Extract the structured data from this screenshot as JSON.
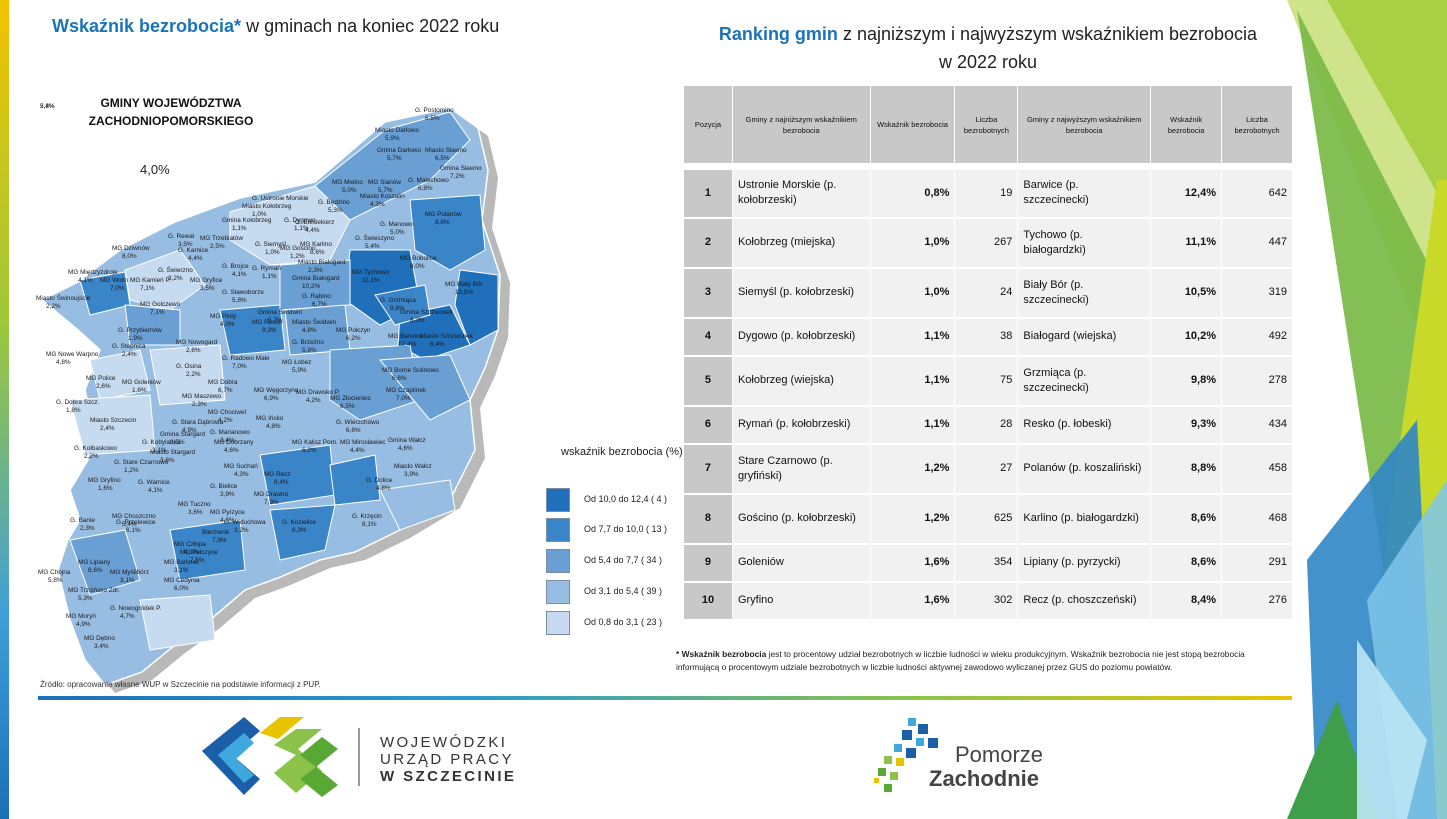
{
  "map": {
    "title_highlight": "Wskaźnik bezrobocia*",
    "title_rest": " w gminach na koniec 2022 roku",
    "region_title_line1": "GMINY WOJEWÓDZTWA",
    "region_title_line2": "ZACHODNIOPOMORSKIEGO",
    "region_value": "4,0%",
    "labels": [
      {
        "name": "G. Postomino",
        "value": "6,5%",
        "cls": 3
      },
      {
        "name": "Miasto Darłowo",
        "value": "5,9%",
        "cls": 3
      },
      {
        "name": "Gmina Darłowo",
        "value": "5,7%",
        "cls": 3
      },
      {
        "name": "Miasto Sławno",
        "value": "6,5%",
        "cls": 3
      },
      {
        "name": "Gmina Sławno",
        "value": "7,2%",
        "cls": 3
      },
      {
        "name": "G. Malechowo",
        "value": "6,8%",
        "cls": 3
      },
      {
        "name": "MG Mielno",
        "value": "5,0%",
        "cls": 2
      },
      {
        "name": "MG Sianów",
        "value": "5,7%",
        "cls": 3
      },
      {
        "name": "G. Ustronie Morskie",
        "value": "",
        "cls": 1
      },
      {
        "name": "Miasto Koszalin",
        "value": "4,3%",
        "cls": 2
      },
      {
        "name": "G. Będzino",
        "value": "5,3%",
        "cls": 2
      },
      {
        "name": "Miasto Kołobrzeg",
        "value": "1,0%",
        "cls": 1
      },
      {
        "name": "MG Polanów",
        "value": "8,8%",
        "cls": 4
      },
      {
        "name": "G. Biesiekierz",
        "value": "4,4%",
        "cls": 2
      },
      {
        "name": "G. Manowo",
        "value": "5,0%",
        "cls": 2
      },
      {
        "name": "G. Świeszyno",
        "value": "5,4%",
        "cls": 3
      },
      {
        "name": "Gmina Kołobrzeg",
        "value": "1,1%",
        "cls": 1
      },
      {
        "name": "G. Dygowo",
        "value": "1,1%",
        "cls": 1
      },
      {
        "name": "G. Rewal",
        "value": "3,5%",
        "cls": 2
      },
      {
        "name": "MG Trzebiatów",
        "value": "2,5%",
        "cls": 1
      },
      {
        "name": "G. Siemyśl",
        "value": "1,0%",
        "cls": 1
      },
      {
        "name": "MG Gościno",
        "value": "1,2%",
        "cls": 1
      },
      {
        "name": "MG Karlino",
        "value": "8,6%",
        "cls": 4
      },
      {
        "name": "MG Dziwnów",
        "value": "8,0%",
        "cls": 4
      },
      {
        "name": "G. Karnice",
        "value": "4,4%",
        "cls": 2
      },
      {
        "name": "MG Bobolice",
        "value": "8,0%",
        "cls": 4
      },
      {
        "name": "Miasto Białogard",
        "value": "2,3%",
        "cls": 1
      },
      {
        "name": "G. Brojce",
        "value": "4,1%",
        "cls": 2
      },
      {
        "name": "G. Rymań",
        "value": "1,1%",
        "cls": 1
      },
      {
        "name": "MG Tychowo",
        "value": "11,1%",
        "cls": 5
      },
      {
        "name": "G. Świerzno",
        "value": "3,2%",
        "cls": 2
      },
      {
        "name": "Gmina Białogard",
        "value": "10,2%",
        "cls": 5
      },
      {
        "name": "MG Międzyzdroje",
        "value": "4,1%",
        "cls": 2
      },
      {
        "name": "MG Wolin",
        "value": "7,0%",
        "cls": 3
      },
      {
        "name": "MG Kamień P.",
        "value": "7,1%",
        "cls": 3
      },
      {
        "name": "MG Gryfice",
        "value": "3,5%",
        "cls": 2
      },
      {
        "name": "G. Sławoborze",
        "value": "5,8%",
        "cls": 3
      },
      {
        "name": "G. Rąbino",
        "value": "6,7%",
        "cls": 3
      },
      {
        "name": "MG Biały Bór",
        "value": "10,5%",
        "cls": 5
      },
      {
        "name": "Miasto Świnoujście",
        "value": "2,2%",
        "cls": 1
      },
      {
        "name": "G. Grzmiąca",
        "value": "9,8%",
        "cls": 4
      },
      {
        "name": "MG Golczewo",
        "value": "7,1%",
        "cls": 3
      },
      {
        "name": "MG Płoty",
        "value": "4,0%",
        "cls": 2
      },
      {
        "name": "Gmina Świdwin",
        "value": "6,7%",
        "cls": 3
      },
      {
        "name": "Miasto Świdwin",
        "value": "4,8%",
        "cls": 2
      },
      {
        "name": "Gmina Szczecinek",
        "value": "8,3%",
        "cls": 4
      },
      {
        "name": "G. Przybiernów",
        "value": "1,9%",
        "cls": 1
      },
      {
        "name": "MG Resko",
        "value": "9,3%",
        "cls": 4
      },
      {
        "name": "MG Połczyn",
        "value": "6,2%",
        "cls": 3
      },
      {
        "name": "MG Barwice",
        "value": "12,4%",
        "cls": 5
      },
      {
        "name": "Miasto Szczecinek",
        "value": "6,4%",
        "cls": 3
      },
      {
        "name": "G. Stepnica",
        "value": "2,4%",
        "cls": 1
      },
      {
        "name": "MG Nowogard",
        "value": "2,6%",
        "cls": 1
      },
      {
        "name": "G. Brzeżno",
        "value": "5,8%",
        "cls": 3
      },
      {
        "name": "MG Nowe Warpno",
        "value": "4,8%",
        "cls": 2
      },
      {
        "name": "G. Radowo Małe",
        "value": "7,0%",
        "cls": 3
      },
      {
        "name": "MG Łobez",
        "value": "5,9%",
        "cls": 3
      },
      {
        "name": "G. Osina",
        "value": "2,2%",
        "cls": 1
      },
      {
        "name": "MG Police",
        "value": "2,6%",
        "cls": 1
      },
      {
        "name": "MG Borne Sulinowo",
        "value": "6,6%",
        "cls": 3
      },
      {
        "name": "MG Goleniów",
        "value": "1,6%",
        "cls": 1
      },
      {
        "name": "MG Dobra",
        "value": "6,7%",
        "cls": 3
      },
      {
        "name": "MG Węgorzyno",
        "value": "6,9%",
        "cls": 3
      },
      {
        "name": "MG Czaplinek",
        "value": "7,0%",
        "cls": 3
      },
      {
        "name": "MG Drawsko P.",
        "value": "4,2%",
        "cls": 2
      },
      {
        "name": "MG Złocieniec",
        "value": "6,5%",
        "cls": 3
      },
      {
        "name": "G. Dobra Szcz.",
        "value": "1,8%",
        "cls": 1
      },
      {
        "name": "MG Maszewo",
        "value": "2,3%",
        "cls": 1
      },
      {
        "name": "MG Chociwel",
        "value": "4,2%",
        "cls": 2
      },
      {
        "name": "Miasto Szczecin",
        "value": "2,4%",
        "cls": 1
      },
      {
        "name": "G. Stara Dąbrowa",
        "value": "4,9%",
        "cls": 2
      },
      {
        "name": "MG Ińsko",
        "value": "4,8%",
        "cls": 2
      },
      {
        "name": "G. Wierzchowo",
        "value": "6,6%",
        "cls": 3
      },
      {
        "name": "Gmina Stargard",
        "value": "3,5%",
        "cls": 2
      },
      {
        "name": "G. Marianowo",
        "value": "3,4%",
        "cls": 2
      },
      {
        "name": "G. Kołbaskowo",
        "value": "2,2%",
        "cls": 1
      },
      {
        "name": "G. Kobylanka",
        "value": "3,1%",
        "cls": 1
      },
      {
        "name": "Miasto Stargard",
        "value": "3,6%",
        "cls": 2
      },
      {
        "name": "MG Dobrzany",
        "value": "4,6%",
        "cls": 2
      },
      {
        "name": "MG Kalisz Pom.",
        "value": "6,2%",
        "cls": 3
      },
      {
        "name": "MG Mirosławiec",
        "value": "4,4%",
        "cls": 2
      },
      {
        "name": "Gmina Wałcz",
        "value": "4,6%",
        "cls": 2
      },
      {
        "name": "G. Stare Czarnowo",
        "value": "1,2%",
        "cls": 1
      },
      {
        "name": "MG Suchań",
        "value": "4,3%",
        "cls": 2
      },
      {
        "name": "Miasto Wałcz",
        "value": "3,9%",
        "cls": 2
      },
      {
        "name": "MG Recz",
        "value": "8,4%",
        "cls": 4
      },
      {
        "name": "MG Gryfino",
        "value": "1,6%",
        "cls": 1
      },
      {
        "name": "G. Warnice",
        "value": "4,1%",
        "cls": 2
      },
      {
        "name": "G. Bielice",
        "value": "3,9%",
        "cls": 2
      },
      {
        "name": "G. Dolice",
        "value": "4,8%",
        "cls": 2
      },
      {
        "name": "MG Drawno",
        "value": "7,9%",
        "cls": 4
      },
      {
        "name": "MG Tuczno",
        "value": "3,6%",
        "cls": 2
      },
      {
        "name": "MG Choszczno",
        "value": "5,4%",
        "cls": 3
      },
      {
        "name": "MG Pyrzyce",
        "value": "4,3%",
        "cls": 2
      },
      {
        "name": "G. Banie",
        "value": "2,3%",
        "cls": 1
      },
      {
        "name": "G. Przelewice",
        "value": "6,1%",
        "cls": 3
      },
      {
        "name": "G. Widuchowa",
        "value": "3,2%",
        "cls": 2
      },
      {
        "name": "G. Kozielice",
        "value": "6,3%",
        "cls": 3
      },
      {
        "name": "G. Krzęcin",
        "value": "8,1%",
        "cls": 4
      },
      {
        "name": "Bierzwnik",
        "value": "7,9%",
        "cls": 4
      },
      {
        "name": "MG Człopa",
        "value": "4,1%",
        "cls": 2
      },
      {
        "name": "MG Pełczyce",
        "value": "7,5%",
        "cls": 3
      },
      {
        "name": "MG Lipiany",
        "value": "8,6%",
        "cls": 4
      },
      {
        "name": "MG Barlinek",
        "value": "3,1%",
        "cls": 1
      },
      {
        "name": "MG Chojna",
        "value": "5,8%",
        "cls": 3
      },
      {
        "name": "MG Myślibórz",
        "value": "3,1%",
        "cls": 1
      },
      {
        "name": "MG Cedynia",
        "value": "6,0%",
        "cls": 3
      },
      {
        "name": "MG Trzcińsko Zdr.",
        "value": "5,3%",
        "cls": 2
      },
      {
        "name": "G. Nowogródek P.",
        "value": "4,7%",
        "cls": 2
      },
      {
        "name": "MG Moryń",
        "value": "4,9%",
        "cls": 2
      },
      {
        "name": "MG Dębno",
        "value": "3,4%",
        "cls": 2
      },
      {
        "name": "MG Mieszkowice",
        "value": "5,4%",
        "cls": 2
      },
      {
        "name": "G. Boleszkowice",
        "value": "2,8%",
        "cls": 1
      }
    ]
  },
  "legend": {
    "title": "wskaźnik bezrobocia (%)",
    "items": [
      {
        "text": "Od  10,0 do  12,4 ( 4 )",
        "color": "#1f6fba"
      },
      {
        "text": "Od  7,7 do  10,0 ( 13 )",
        "color": "#3a84c8"
      },
      {
        "text": "Od  5,4 do  7,7 ( 34 )",
        "color": "#6a9fd4"
      },
      {
        "text": "Od  3,1 do  5,4 ( 39 )",
        "color": "#98bde2"
      },
      {
        "text": "Od  0,8 do  3,1 ( 23 )",
        "color": "#c6daf0"
      }
    ]
  },
  "source_note": "Źródło: opracowanie własne WUP w Szczecinie na podstawie informacji z PUP.",
  "ranking": {
    "title_highlight": "Ranking gmin",
    "title_rest": " z najniższym i najwyższym wskaźnikiem bezrobocia",
    "title_line2": "w 2022 roku",
    "headers": [
      "Pozycja",
      "Gminy z najniższym wskaźnikiem bezrobocia",
      "Wskaźnik bezrobocia",
      "Liczba bezrobotnych",
      "Gminy z najwyższym wskaźnikiem bezrobocia",
      "Wskaźnik bezrobocia",
      "Liczba bezrobotnych"
    ],
    "rows": [
      {
        "pos": "1",
        "low_name": "Ustronie Morskie (p. kołobrzeski)",
        "low_rate": "0,8%",
        "low_count": "19",
        "high_name": "Barwice (p. szczecinecki)",
        "high_rate": "12,4%",
        "high_count": "642"
      },
      {
        "pos": "2",
        "low_name": "Kołobrzeg (miejska)",
        "low_rate": "1,0%",
        "low_count": "267",
        "high_name": "Tychowo (p. białogardzki)",
        "high_rate": "11,1%",
        "high_count": "447"
      },
      {
        "pos": "3",
        "low_name": "Siemyśl (p. kołobrzeski)",
        "low_rate": "1,0%",
        "low_count": "24",
        "high_name": "Biały Bór (p. szczecinecki)",
        "high_rate": "10,5%",
        "high_count": "319"
      },
      {
        "pos": "4",
        "low_name": "Dygowo (p. kołobrzeski)",
        "low_rate": "1,1%",
        "low_count": "38",
        "high_name": "Białogard (wiejska)",
        "high_rate": "10,2%",
        "high_count": "492"
      },
      {
        "pos": "5",
        "low_name": "Kołobrzeg (wiejska)",
        "low_rate": "1,1%",
        "low_count": "75",
        "high_name": "Grzmiąca (p. szczecinecki)",
        "high_rate": "9,8%",
        "high_count": "278"
      },
      {
        "pos": "6",
        "low_name": "Rymań (p. kołobrzeski)",
        "low_rate": "1,1%",
        "low_count": "28",
        "high_name": "Resko (p. łobeski)",
        "high_rate": "9,3%",
        "high_count": "434"
      },
      {
        "pos": "7",
        "low_name": "Stare Czarnowo (p. gryfiński)",
        "low_rate": "1,2%",
        "low_count": "27",
        "high_name": "Polanów (p. koszaliński)",
        "high_rate": "8,8%",
        "high_count": "458"
      },
      {
        "pos": "8",
        "low_name": "Gościno (p. kołobrzeski)",
        "low_rate": "1,2%",
        "low_count": "625",
        "high_name": "Karlino (p. białogardzki)",
        "high_rate": "8,6%",
        "high_count": "468"
      },
      {
        "pos": "9",
        "low_name": "Goleniów",
        "low_rate": "1,6%",
        "low_count": "354",
        "high_name": "Lipiany (p. pyrzycki)",
        "high_rate": "8,6%",
        "high_count": "291"
      },
      {
        "pos": "10",
        "low_name": "Gryfino",
        "low_rate": "1,6%",
        "low_count": "302",
        "high_name": "Recz (p. choszczeński)",
        "high_rate": "8,4%",
        "high_count": "276"
      }
    ]
  },
  "footnote": {
    "bold": "* Wskaźnik bezrobocia",
    "rest": " jest to procentowy udział bezrobotnych w liczbie ludności w wieku produkcyjnym. Wskaźnik bezrobocia nie jest stopą bezrobocia informującą o procentowym udziale bezrobotnych w liczbie ludności aktywnej zawodowo wyliczanej przez GUS do poziomu powiatów."
  },
  "logos": {
    "wup_line1": "WOJEWÓDZKI",
    "wup_line2": "URZĄD PRACY",
    "wup_line3": "W SZCZECINIE",
    "pz_line1": "Pomorze",
    "pz_line2": "Zachodnie"
  }
}
